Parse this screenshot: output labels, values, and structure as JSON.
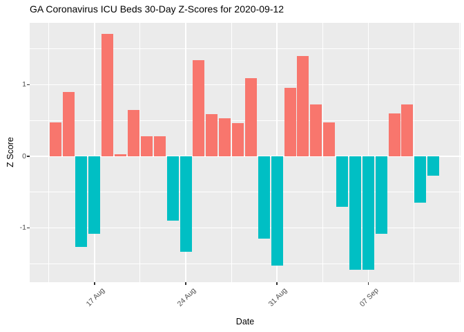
{
  "title": "GA Coronavirus ICU Beds 30-Day Z-Scores for 2020-09-12",
  "chart_data": {
    "type": "bar",
    "title": "GA Coronavirus ICU Beds 30-Day Z-Scores for 2020-09-12",
    "xlabel": "Date",
    "ylabel": "Z Score",
    "x": [
      "2020-08-14",
      "2020-08-15",
      "2020-08-16",
      "2020-08-17",
      "2020-08-18",
      "2020-08-19",
      "2020-08-20",
      "2020-08-21",
      "2020-08-22",
      "2020-08-23",
      "2020-08-24",
      "2020-08-25",
      "2020-08-26",
      "2020-08-27",
      "2020-08-28",
      "2020-08-29",
      "2020-08-30",
      "2020-08-31",
      "2020-09-01",
      "2020-09-02",
      "2020-09-03",
      "2020-09-04",
      "2020-09-05",
      "2020-09-06",
      "2020-09-07",
      "2020-09-08",
      "2020-09-09",
      "2020-09-10",
      "2020-09-11",
      "2020-09-12"
    ],
    "values": [
      0.47,
      0.9,
      -1.27,
      -1.08,
      1.71,
      0.03,
      0.65,
      0.28,
      0.28,
      -0.9,
      -1.33,
      1.34,
      0.59,
      0.53,
      0.46,
      1.09,
      -1.15,
      -1.53,
      0.96,
      1.4,
      0.72,
      0.47,
      -0.71,
      -1.58,
      -1.58,
      -1.08,
      0.6,
      0.72,
      -0.65,
      -0.27
    ],
    "x_ticks": [
      {
        "label": "17 Aug",
        "day_index": 3
      },
      {
        "label": "24 Aug",
        "day_index": 10
      },
      {
        "label": "31 Aug",
        "day_index": 17
      },
      {
        "label": "07 Sep",
        "day_index": 24
      }
    ],
    "y_ticks": [
      {
        "label": "-1",
        "value": -1
      },
      {
        "label": "0",
        "value": 0
      },
      {
        "label": "1",
        "value": 1
      }
    ],
    "ylim": [
      -1.76,
      1.87
    ],
    "grid": "on",
    "legend": "none",
    "colors": {
      "positive": "#F8766D",
      "negative": "#00BFC4",
      "panel_bg": "#EBEBEB",
      "grid": "#FFFFFF",
      "tick_label": "#4D4D4D",
      "axis_title": "#000000"
    }
  }
}
